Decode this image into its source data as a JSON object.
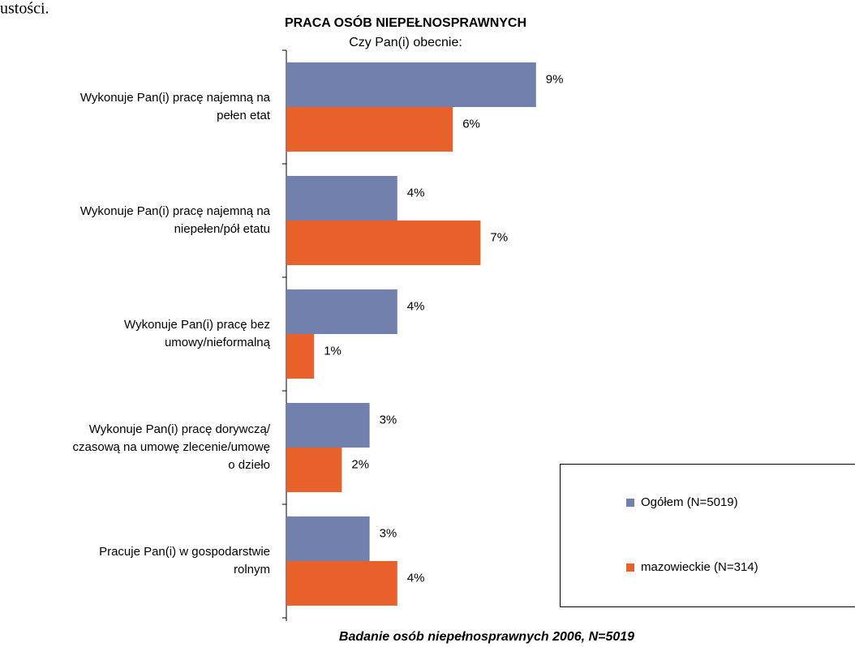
{
  "fragment": "ustości.",
  "chart_data": {
    "type": "hbar",
    "title": "PRACA OSÓB NIEPEŁNOSPRAWNYCH",
    "subtitle": "Czy Pan(i) obecnie:",
    "footer": "Badanie osób niepełnosprawnych 2006, N=5019",
    "categories": [
      "Wykonuje Pan(i) pracę najemną na\npełen etat",
      "Wykonuje Pan(i) pracę najemną na\nniepełen/pół etatu",
      "Wykonuje Pan(i) pracę bez\numowy/nieformalną",
      "Wykonuje Pan(i) pracę dorywczą/\nczasową na umowę zlecenie/umowę\no dzieło",
      "Pracuje Pan(i) w gospodarstwie\nrolnym"
    ],
    "series": [
      {
        "name": "Ogółem (N=5019)",
        "color": "#7180ad",
        "values": [
          9,
          4,
          4,
          3,
          3
        ],
        "value_labels": [
          "9%",
          "4%",
          "4%",
          "3%",
          "3%"
        ]
      },
      {
        "name": "mazowieckie  (N=314)",
        "color": "#e8612a",
        "values": [
          6,
          7,
          1,
          2,
          4
        ],
        "value_labels": [
          "6%",
          "7%",
          "1%",
          "2%",
          "4%"
        ]
      }
    ]
  }
}
